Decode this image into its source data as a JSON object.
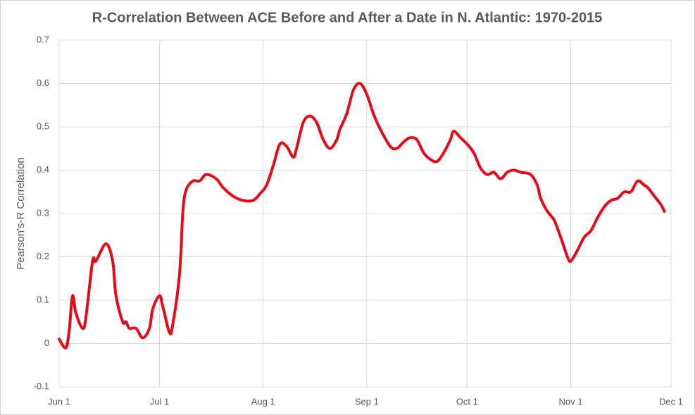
{
  "chart_data": {
    "type": "line",
    "title": "R-Correlation Between ACE Before and After a Date in N. Atlantic: 1970-2015",
    "y_label": "Pearson's-R Correlation",
    "x": [
      0,
      2,
      3,
      4,
      5,
      7,
      8,
      10,
      11,
      14,
      16,
      17,
      19,
      20,
      21,
      23,
      25,
      27,
      28,
      30,
      31,
      33,
      34,
      36,
      37,
      38,
      40,
      42,
      44,
      47,
      49,
      52,
      55,
      58,
      60,
      62,
      64,
      66,
      68,
      70,
      71,
      73,
      75,
      77,
      79,
      81,
      83,
      84,
      86,
      88,
      90,
      92,
      94,
      96,
      99,
      101,
      103,
      105,
      107,
      109,
      111,
      113,
      115,
      117,
      118,
      120,
      122,
      124,
      126,
      128,
      130,
      132,
      134,
      136,
      138,
      141,
      143,
      144,
      146,
      148,
      150,
      152,
      153,
      155,
      157,
      159,
      161,
      163,
      165,
      167,
      169,
      171,
      173,
      175,
      176,
      178,
      180,
      181
    ],
    "series": [
      {
        "name": "R-Correlation",
        "color": "#e30b17",
        "values": [
          0.01,
          -0.01,
          0.03,
          0.11,
          0.07,
          0.035,
          0.06,
          0.19,
          0.19,
          0.23,
          0.19,
          0.11,
          0.05,
          0.05,
          0.035,
          0.035,
          0.013,
          0.035,
          0.08,
          0.11,
          0.085,
          0.025,
          0.045,
          0.16,
          0.305,
          0.355,
          0.375,
          0.375,
          0.39,
          0.38,
          0.36,
          0.34,
          0.33,
          0.33,
          0.345,
          0.365,
          0.41,
          0.46,
          0.455,
          0.43,
          0.45,
          0.51,
          0.525,
          0.51,
          0.47,
          0.45,
          0.47,
          0.495,
          0.53,
          0.585,
          0.6,
          0.575,
          0.53,
          0.495,
          0.455,
          0.45,
          0.465,
          0.475,
          0.47,
          0.44,
          0.425,
          0.42,
          0.44,
          0.47,
          0.49,
          0.475,
          0.46,
          0.44,
          0.405,
          0.39,
          0.395,
          0.38,
          0.395,
          0.4,
          0.395,
          0.39,
          0.365,
          0.335,
          0.305,
          0.285,
          0.245,
          0.2,
          0.19,
          0.215,
          0.245,
          0.26,
          0.29,
          0.315,
          0.33,
          0.335,
          0.35,
          0.35,
          0.375,
          0.365,
          0.36,
          0.34,
          0.32,
          0.305
        ]
      }
    ],
    "xlim": [
      0,
      183
    ],
    "xticks": [
      {
        "value": 0,
        "label": "Jun 1"
      },
      {
        "value": 30,
        "label": "Jul 1"
      },
      {
        "value": 61,
        "label": "Aug 1"
      },
      {
        "value": 92,
        "label": "Sep 1"
      },
      {
        "value": 122,
        "label": "Oct 1"
      },
      {
        "value": 153,
        "label": "Nov 1"
      },
      {
        "value": 183,
        "label": "Dec 1"
      }
    ],
    "ylim": [
      -0.1,
      0.7
    ],
    "yticks": [
      -0.1,
      0,
      0.1,
      0.2,
      0.3,
      0.4,
      0.5,
      0.6,
      0.7
    ],
    "grid": true
  }
}
